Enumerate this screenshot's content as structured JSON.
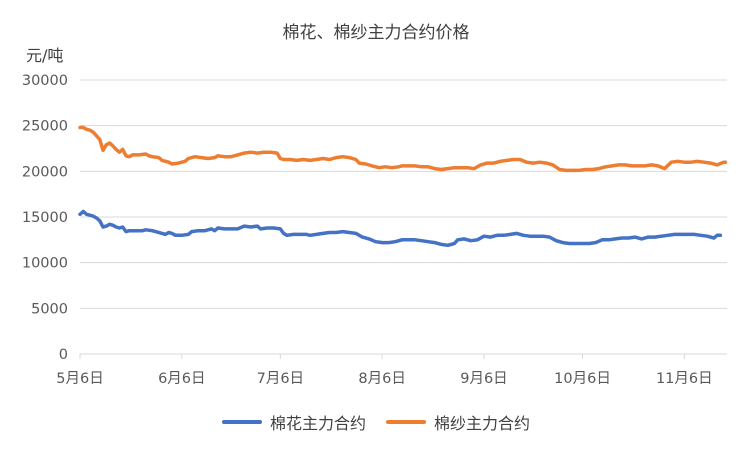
{
  "chart_data": {
    "type": "line",
    "title": "棉花、棉纱主力合约价格",
    "ylabel": "元/吨",
    "xlabel": "",
    "ylim": [
      0,
      30000
    ],
    "y_ticks": [
      "0",
      "5000",
      "10000",
      "15000",
      "20000",
      "25000",
      "30000"
    ],
    "x_ticks": [
      "5月6日",
      "6月6日",
      "7月6日",
      "8月6日",
      "9月6日",
      "10月6日",
      "11月6日"
    ],
    "x_tick_days": [
      0,
      31,
      61,
      92,
      123,
      153,
      184
    ],
    "grid": true,
    "legend_position": "bottom",
    "colors": {
      "cotton": "#4472C4",
      "yarn": "#ED7D31",
      "grid": "#D9D9D9"
    },
    "series": [
      {
        "name": "棉花主力合约",
        "color": "#4472C4",
        "points": [
          [
            0,
            15300
          ],
          [
            1,
            15600
          ],
          [
            2,
            15300
          ],
          [
            3,
            15200
          ],
          [
            4,
            15100
          ],
          [
            5,
            14900
          ],
          [
            6,
            14600
          ],
          [
            7,
            13900
          ],
          [
            8,
            14000
          ],
          [
            9,
            14200
          ],
          [
            10,
            14100
          ],
          [
            11,
            13900
          ],
          [
            12,
            13800
          ],
          [
            13,
            13900
          ],
          [
            14,
            13400
          ],
          [
            15,
            13500
          ],
          [
            17,
            13500
          ],
          [
            19,
            13500
          ],
          [
            20,
            13600
          ],
          [
            22,
            13500
          ],
          [
            23,
            13400
          ],
          [
            25,
            13200
          ],
          [
            26,
            13100
          ],
          [
            27,
            13300
          ],
          [
            28,
            13200
          ],
          [
            29,
            13000
          ],
          [
            31,
            13000
          ],
          [
            33,
            13100
          ],
          [
            34,
            13400
          ],
          [
            36,
            13500
          ],
          [
            38,
            13500
          ],
          [
            40,
            13700
          ],
          [
            41,
            13500
          ],
          [
            42,
            13800
          ],
          [
            44,
            13700
          ],
          [
            46,
            13700
          ],
          [
            48,
            13700
          ],
          [
            50,
            14000
          ],
          [
            52,
            13900
          ],
          [
            54,
            14000
          ],
          [
            55,
            13700
          ],
          [
            57,
            13800
          ],
          [
            59,
            13800
          ],
          [
            61,
            13700
          ],
          [
            62,
            13200
          ],
          [
            63,
            13000
          ],
          [
            65,
            13100
          ],
          [
            67,
            13100
          ],
          [
            69,
            13100
          ],
          [
            70,
            13000
          ],
          [
            72,
            13100
          ],
          [
            74,
            13200
          ],
          [
            76,
            13300
          ],
          [
            78,
            13300
          ],
          [
            80,
            13400
          ],
          [
            82,
            13300
          ],
          [
            84,
            13200
          ],
          [
            86,
            12800
          ],
          [
            88,
            12600
          ],
          [
            90,
            12300
          ],
          [
            92,
            12200
          ],
          [
            94,
            12200
          ],
          [
            96,
            12300
          ],
          [
            98,
            12500
          ],
          [
            100,
            12500
          ],
          [
            102,
            12500
          ],
          [
            104,
            12400
          ],
          [
            106,
            12300
          ],
          [
            108,
            12200
          ],
          [
            110,
            12000
          ],
          [
            112,
            11900
          ],
          [
            114,
            12100
          ],
          [
            115,
            12500
          ],
          [
            117,
            12600
          ],
          [
            119,
            12400
          ],
          [
            121,
            12500
          ],
          [
            123,
            12900
          ],
          [
            125,
            12800
          ],
          [
            127,
            13000
          ],
          [
            129,
            13000
          ],
          [
            131,
            13100
          ],
          [
            133,
            13200
          ],
          [
            135,
            13000
          ],
          [
            137,
            12900
          ],
          [
            139,
            12900
          ],
          [
            141,
            12900
          ],
          [
            143,
            12800
          ],
          [
            145,
            12400
          ],
          [
            147,
            12200
          ],
          [
            149,
            12100
          ],
          [
            151,
            12100
          ],
          [
            153,
            12100
          ],
          [
            155,
            12100
          ],
          [
            157,
            12200
          ],
          [
            159,
            12500
          ],
          [
            161,
            12500
          ],
          [
            163,
            12600
          ],
          [
            165,
            12700
          ],
          [
            167,
            12700
          ],
          [
            169,
            12800
          ],
          [
            171,
            12600
          ],
          [
            173,
            12800
          ],
          [
            175,
            12800
          ],
          [
            177,
            12900
          ],
          [
            179,
            13000
          ],
          [
            181,
            13100
          ],
          [
            183,
            13100
          ],
          [
            185,
            13100
          ],
          [
            187,
            13100
          ],
          [
            189,
            13000
          ],
          [
            191,
            12900
          ],
          [
            193,
            12700
          ],
          [
            194,
            13000
          ],
          [
            195,
            13000
          ]
        ]
      },
      {
        "name": "棉纱主力合约",
        "color": "#ED7D31",
        "points": [
          [
            0,
            24800
          ],
          [
            1,
            24800
          ],
          [
            2,
            24600
          ],
          [
            3,
            24500
          ],
          [
            4,
            24300
          ],
          [
            5,
            23900
          ],
          [
            6,
            23500
          ],
          [
            7,
            22300
          ],
          [
            8,
            22900
          ],
          [
            9,
            23100
          ],
          [
            10,
            22800
          ],
          [
            11,
            22400
          ],
          [
            12,
            22100
          ],
          [
            13,
            22400
          ],
          [
            14,
            21700
          ],
          [
            15,
            21600
          ],
          [
            16,
            21800
          ],
          [
            18,
            21800
          ],
          [
            20,
            21900
          ],
          [
            21,
            21700
          ],
          [
            22,
            21600
          ],
          [
            24,
            21500
          ],
          [
            25,
            21200
          ],
          [
            26,
            21100
          ],
          [
            27,
            21000
          ],
          [
            28,
            20800
          ],
          [
            30,
            20900
          ],
          [
            32,
            21100
          ],
          [
            33,
            21400
          ],
          [
            35,
            21600
          ],
          [
            37,
            21500
          ],
          [
            39,
            21400
          ],
          [
            41,
            21500
          ],
          [
            42,
            21700
          ],
          [
            44,
            21600
          ],
          [
            46,
            21600
          ],
          [
            48,
            21800
          ],
          [
            50,
            22000
          ],
          [
            52,
            22100
          ],
          [
            54,
            22000
          ],
          [
            56,
            22100
          ],
          [
            58,
            22100
          ],
          [
            60,
            22000
          ],
          [
            61,
            21400
          ],
          [
            62,
            21300
          ],
          [
            64,
            21300
          ],
          [
            66,
            21200
          ],
          [
            68,
            21300
          ],
          [
            70,
            21200
          ],
          [
            72,
            21300
          ],
          [
            74,
            21400
          ],
          [
            76,
            21300
          ],
          [
            78,
            21500
          ],
          [
            80,
            21600
          ],
          [
            82,
            21500
          ],
          [
            84,
            21300
          ],
          [
            85,
            20900
          ],
          [
            87,
            20800
          ],
          [
            89,
            20600
          ],
          [
            91,
            20400
          ],
          [
            93,
            20500
          ],
          [
            95,
            20400
          ],
          [
            97,
            20500
          ],
          [
            98,
            20600
          ],
          [
            100,
            20600
          ],
          [
            102,
            20600
          ],
          [
            104,
            20500
          ],
          [
            106,
            20500
          ],
          [
            108,
            20300
          ],
          [
            110,
            20200
          ],
          [
            112,
            20300
          ],
          [
            114,
            20400
          ],
          [
            116,
            20400
          ],
          [
            118,
            20400
          ],
          [
            120,
            20300
          ],
          [
            122,
            20700
          ],
          [
            124,
            20900
          ],
          [
            126,
            20900
          ],
          [
            128,
            21100
          ],
          [
            130,
            21200
          ],
          [
            132,
            21300
          ],
          [
            134,
            21300
          ],
          [
            136,
            21000
          ],
          [
            138,
            20900
          ],
          [
            140,
            21000
          ],
          [
            142,
            20900
          ],
          [
            144,
            20700
          ],
          [
            146,
            20200
          ],
          [
            148,
            20100
          ],
          [
            150,
            20100
          ],
          [
            152,
            20100
          ],
          [
            154,
            20200
          ],
          [
            156,
            20200
          ],
          [
            158,
            20300
          ],
          [
            160,
            20500
          ],
          [
            162,
            20600
          ],
          [
            164,
            20700
          ],
          [
            166,
            20700
          ],
          [
            168,
            20600
          ],
          [
            170,
            20600
          ],
          [
            172,
            20600
          ],
          [
            174,
            20700
          ],
          [
            176,
            20600
          ],
          [
            178,
            20300
          ],
          [
            180,
            21000
          ],
          [
            182,
            21100
          ],
          [
            184,
            21000
          ],
          [
            186,
            21000
          ],
          [
            188,
            21100
          ],
          [
            190,
            21000
          ],
          [
            192,
            20900
          ],
          [
            194,
            20700
          ],
          [
            196,
            21000
          ],
          [
            196.5,
            21000
          ]
        ]
      }
    ]
  }
}
